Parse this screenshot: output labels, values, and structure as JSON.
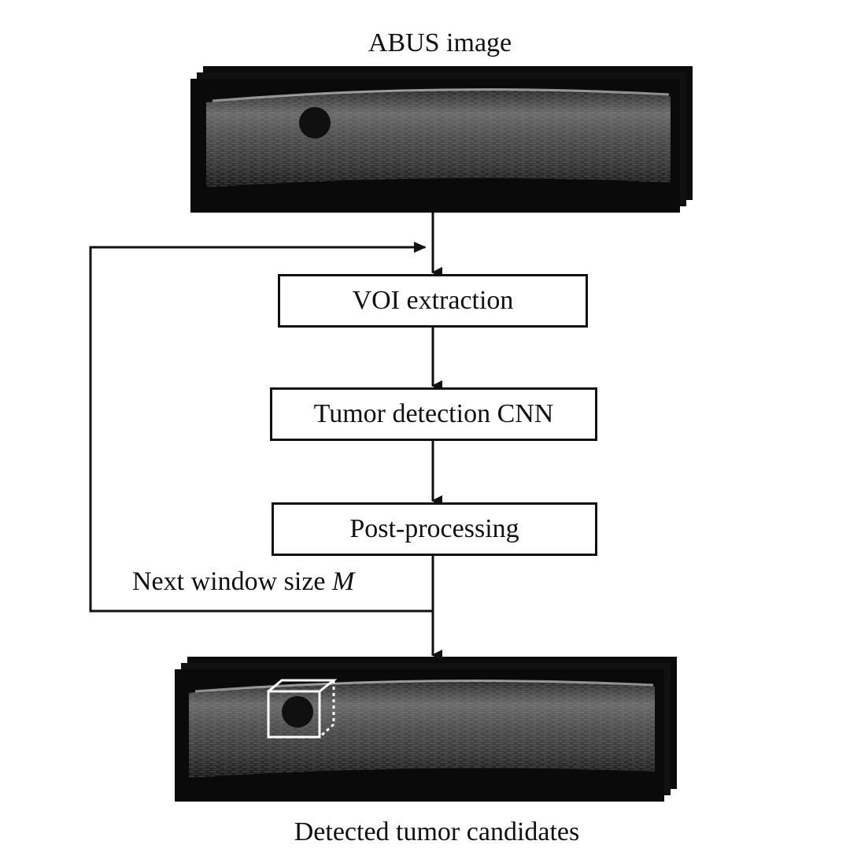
{
  "input_label": "ABUS image",
  "steps": [
    {
      "label": "VOI extraction"
    },
    {
      "label": "Tumor detection CNN"
    },
    {
      "label": "Post-processing"
    }
  ],
  "loop": {
    "text": "Next window size ",
    "variable": "M"
  },
  "output_label": "Detected tumor candidates",
  "colors": {
    "line": "#111111",
    "ultrasound_bg": "#0b0b0b",
    "annotation_box": "#ffffff"
  }
}
